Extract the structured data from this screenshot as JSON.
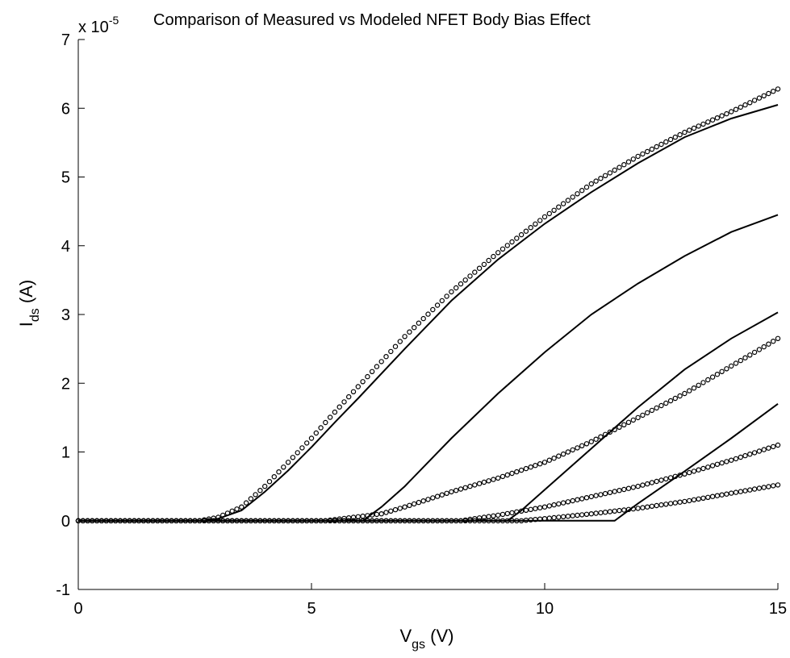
{
  "chart_data": {
    "type": "line",
    "title": "Comparison of Measured vs Modeled NFET Body Bias Effect",
    "scale_prefix": "x 10",
    "scale_exponent": "-5",
    "xlabel": {
      "main": "V",
      "sub": "gs",
      "unit": " (V)"
    },
    "ylabel": {
      "main": "I",
      "sub": "ds",
      "unit": " (A)"
    },
    "xlim": [
      0,
      15
    ],
    "ylim": [
      -1,
      7
    ],
    "x_ticks": [
      0,
      5,
      10,
      15
    ],
    "x_tick_labels": [
      "0",
      "5",
      "10",
      "15"
    ],
    "y_ticks": [
      -1,
      0,
      1,
      2,
      3,
      4,
      5,
      6,
      7
    ],
    "y_tick_labels": [
      "-1",
      "0",
      "1",
      "2",
      "3",
      "4",
      "5",
      "6",
      "7"
    ],
    "y_multiplier": "1e-5",
    "grid": false,
    "colors": {
      "line": "#000000",
      "marker": "#000000",
      "background": "#ffffff"
    },
    "series": [
      {
        "style": "circle-markers",
        "x": [
          0,
          2.6,
          3.0,
          3.5,
          4.0,
          4.5,
          5.0,
          5.5,
          6.0,
          7.0,
          8.0,
          9.0,
          10.0,
          11.0,
          12.0,
          13.0,
          14.0,
          15.0
        ],
        "y": [
          0,
          0,
          0.05,
          0.2,
          0.5,
          0.85,
          1.2,
          1.58,
          1.95,
          2.68,
          3.33,
          3.9,
          4.42,
          4.9,
          5.3,
          5.65,
          5.95,
          6.28
        ]
      },
      {
        "style": "solid",
        "x": [
          0,
          2.7,
          3.0,
          3.5,
          4.0,
          4.5,
          5.0,
          5.5,
          6.0,
          7.0,
          8.0,
          9.0,
          10.0,
          11.0,
          12.0,
          13.0,
          14.0,
          15.0
        ],
        "y": [
          0,
          0,
          0.03,
          0.15,
          0.42,
          0.73,
          1.07,
          1.43,
          1.78,
          2.5,
          3.2,
          3.8,
          4.32,
          4.78,
          5.2,
          5.58,
          5.85,
          6.05
        ]
      },
      {
        "style": "solid",
        "x": [
          0,
          6.1,
          6.5,
          7.0,
          8.0,
          9.0,
          10.0,
          11.0,
          12.0,
          13.0,
          14.0,
          15.0
        ],
        "y": [
          0,
          0,
          0.2,
          0.5,
          1.2,
          1.85,
          2.45,
          3.0,
          3.45,
          3.85,
          4.2,
          4.45
        ]
      },
      {
        "style": "circle-markers",
        "x": [
          0,
          5.3,
          6.5,
          7.0,
          8.0,
          9.0,
          10.0,
          11.0,
          12.0,
          13.0,
          14.0,
          15.0
        ],
        "y": [
          0,
          0,
          0.1,
          0.2,
          0.42,
          0.62,
          0.85,
          1.15,
          1.5,
          1.85,
          2.25,
          2.65
        ]
      },
      {
        "style": "solid",
        "x": [
          0,
          9.2,
          9.5,
          10.0,
          11.0,
          12.0,
          13.0,
          14.0,
          15.0
        ],
        "y": [
          0,
          0,
          0.15,
          0.45,
          1.05,
          1.65,
          2.2,
          2.65,
          3.03
        ]
      },
      {
        "style": "circle-markers",
        "x": [
          0,
          8.2,
          9.0,
          10.0,
          11.0,
          12.0,
          13.0,
          14.0,
          15.0
        ],
        "y": [
          0,
          0,
          0.08,
          0.2,
          0.35,
          0.5,
          0.68,
          0.88,
          1.1
        ]
      },
      {
        "style": "solid",
        "x": [
          0,
          11.5,
          11.7,
          12.0,
          13.0,
          14.0,
          15.0
        ],
        "y": [
          0,
          0,
          0.1,
          0.25,
          0.72,
          1.2,
          1.7
        ]
      },
      {
        "style": "circle-markers",
        "x": [
          0,
          9.5,
          10.0,
          11.0,
          12.0,
          13.0,
          14.0,
          15.0
        ],
        "y": [
          0,
          0,
          0.03,
          0.1,
          0.18,
          0.28,
          0.4,
          0.52
        ]
      }
    ]
  }
}
